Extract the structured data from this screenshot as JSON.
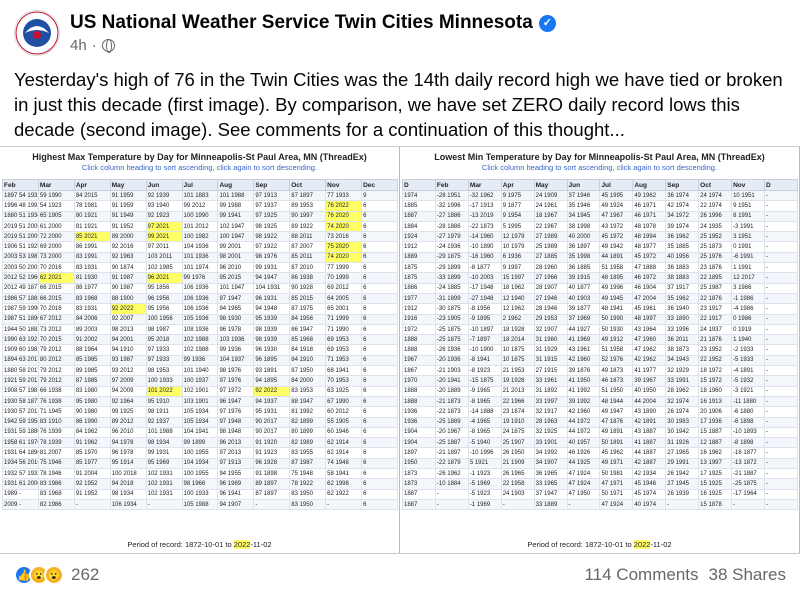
{
  "post": {
    "author": "US National Weather Service Twin Cities Minnesota",
    "time": "4h",
    "text": "Yesterday's high of 76 in the Twin Cities was the 14th daily record high we have tied or broken in just this decade (first image). By comparison, we have set ZERO daily record lows this decade (second image). See comments for a continuation of this thought...",
    "reaction_count": "262",
    "comments": "114 Comments",
    "shares": "38 Shares",
    "reaction_icons": [
      "like-icon",
      "wow-icon",
      "care-icon"
    ]
  },
  "colors": {
    "highlight": "#ffff66",
    "link": "#3a64c8",
    "header_bg": "#e6ecf5"
  },
  "left_table": {
    "title": "Highest Max Temperature by Day for Minneapolis-St Paul Area, MN (ThreadEx)",
    "subtitle": "Click column heading to sort ascending, click again to sort descending.",
    "period": "Period of record: 1872-10-01 to 2022-11-02",
    "headers": [
      "Feb",
      "Mar",
      "Apr",
      "May",
      "Jun",
      "Jul",
      "Aug",
      "Sep",
      "Oct",
      "Nov",
      "Dec"
    ],
    "rows": [
      [
        "1897 54 1931",
        "59 1990",
        "84 2015",
        "91 1959",
        "92 1939",
        "101 1883",
        "101 1988",
        "97 1913",
        "87 1897",
        "77 1933",
        "9"
      ],
      [
        "1996 48 1991",
        "54 1923",
        "78 1981",
        "91 1959",
        "93 1940",
        "99 2012",
        "99 1988",
        "97 1937",
        "89 1953",
        "76 2022",
        "6"
      ],
      [
        "1880 51 1934",
        "65 1905",
        "80 1921",
        "91 1949",
        "92 1923",
        "100 1990",
        "99 1941",
        "97 1925",
        "90 1997",
        "76 2020",
        "6"
      ],
      [
        "2019 51 2005",
        "61 2000",
        "81 1921",
        "91 1952",
        "97 2021",
        "101 2012",
        "102 1947",
        "98 1925",
        "89 1922",
        "74 2020",
        "6"
      ],
      [
        "2019 51 2005",
        "72 2000",
        "85 2021",
        "89 2000",
        "99 2021",
        "100 1982",
        "100 1947",
        "98 1922",
        "88 2011",
        "73 2016",
        "6"
      ],
      [
        "1906 51 1925",
        "69 2000",
        "86 1991",
        "92 2016",
        "97 2011",
        "104 1936",
        "99 2001",
        "97 1922",
        "87 2007",
        "75 2020",
        "6"
      ],
      [
        "2003 53 1987",
        "73 2000",
        "83 1991",
        "92 1963",
        "103 2011",
        "101 1936",
        "98 2001",
        "98 1976",
        "85 2011",
        "74 2020",
        "6"
      ],
      [
        "2003 50 2002",
        "70 2016",
        "83 1931",
        "90 1874",
        "102 1985",
        "101 1974",
        "96 2010",
        "99 1931",
        "87 2010",
        "77 1999",
        "6"
      ],
      [
        "2012 52 1966",
        "62 2021",
        "81 1930",
        "91 1987",
        "96 2021",
        "99 1976",
        "95 2015",
        "94 1947",
        "86 1938",
        "70 1999",
        "6"
      ],
      [
        "2012 49 1877",
        "66 2015",
        "88 1977",
        "90 1987",
        "95 1856",
        "106 1936",
        "101 1947",
        "104 1931",
        "90 1928",
        "69 2012",
        "6"
      ],
      [
        "1986 57 1882",
        "66 2015",
        "83 1968",
        "88 1900",
        "96 1956",
        "106 1936",
        "97 1947",
        "96 1931",
        "85 2015",
        "64 2005",
        "6"
      ],
      [
        "1987 59 1990",
        "70 2016",
        "83 1931",
        "92 2022",
        "95 1956",
        "106 1936",
        "94 1965",
        "94 1948",
        "87 1975",
        "65 2001",
        "6"
      ],
      [
        "1987 51 1890",
        "67 2012",
        "84 2006",
        "92 2007",
        "100 1956",
        "105 1936",
        "98 1930",
        "95 1939",
        "84 1956",
        "71 1999",
        "6"
      ],
      [
        "1944 50 1882",
        "73 2012",
        "89 2003",
        "98 2013",
        "98 1987",
        "108 1936",
        "96 1978",
        "98 1939",
        "86 1947",
        "71 1990",
        "6"
      ],
      [
        "1990 63 1921",
        "70 2015",
        "91 2002",
        "94 2001",
        "95 2018",
        "102 1988",
        "103 1936",
        "98 1939",
        "85 1968",
        "69 1953",
        "6"
      ],
      [
        "1909 60 1981",
        "79 2012",
        "88 1964",
        "94 1910",
        "97 1933",
        "102 1988",
        "99 1936",
        "96 1930",
        "84 1918",
        "69 1953",
        "6"
      ],
      [
        "1894 63 2017",
        "80 2012",
        "85 1985",
        "93 1987",
        "97 1933",
        "99 1936",
        "104 1937",
        "96 1895",
        "84 1910",
        "71 1953",
        "6"
      ],
      [
        "1880 58 2017",
        "79 2012",
        "89 1985",
        "93 2012",
        "98 1953",
        "101 1940",
        "98 1976",
        "93 1891",
        "87 1950",
        "68 1941",
        "6"
      ],
      [
        "1921 59 2017",
        "79 2012",
        "87 1985",
        "97 2009",
        "100 1933",
        "100 1937",
        "97 1976",
        "94 1895",
        "84 2000",
        "70 1953",
        "6"
      ],
      [
        "1908 57 1981",
        "66 1938",
        "83 1980",
        "94 2009",
        "101 2022",
        "102 1901",
        "97 1972",
        "92 2022",
        "83 1953",
        "63 1925",
        "6"
      ],
      [
        "1930 58 1877",
        "76 1938",
        "95 1980",
        "92 1964",
        "95 1910",
        "103 1901",
        "96 1947",
        "94 1937",
        "88 1947",
        "67 1990",
        "6"
      ],
      [
        "1930 57 2017",
        "71 1945",
        "90 1980",
        "99 1925",
        "98 1911",
        "105 1934",
        "97 1976",
        "95 1931",
        "81 1992",
        "60 2012",
        "6"
      ],
      [
        "1942 59 1958",
        "83 1910",
        "86 1990",
        "89 2012",
        "92 1937",
        "105 1934",
        "97 1948",
        "90 2017",
        "82 1899",
        "55 1905",
        "6"
      ],
      [
        "1931 59 1880",
        "76 1939",
        "84 1962",
        "96 2010",
        "101 1988",
        "104 1941",
        "98 1948",
        "90 2017",
        "80 1899",
        "60 1946",
        "6"
      ],
      [
        "1958 61 1976",
        "78 1939",
        "91 1962",
        "94 1978",
        "98 1934",
        "99 1899",
        "96 2013",
        "91 1920",
        "82 1989",
        "62 1914",
        "6"
      ],
      [
        "1931 64 1896",
        "81 2007",
        "85 1970",
        "96 1978",
        "99 1931",
        "100 1955",
        "97 2013",
        "91 1923",
        "83 1955",
        "62 1914",
        "6"
      ],
      [
        "1934 56 2016",
        "75 1946",
        "85 1977",
        "95 1914",
        "95 1969",
        "104 1934",
        "97 1913",
        "96 1928",
        "87 1987",
        "74 1948",
        "6"
      ],
      [
        "1932 57 1932",
        "78 1946",
        "91 2004",
        "100 2018",
        "102 1931",
        "100 1955",
        "94 1955",
        "91 1898",
        "75 1948",
        "58 1941",
        "6"
      ],
      [
        "1931 61 2000",
        "83 1986",
        "92 1952",
        "94 2018",
        "102 1931",
        "98 1966",
        "96 1969",
        "89 1897",
        "78 1922",
        "62 1998",
        "6"
      ],
      [
        "1989 -",
        "83 1968",
        "91 1952",
        "98 1934",
        "102 1931",
        "100 1933",
        "96 1941",
        "87 1897",
        "83 1950",
        "62 1922",
        "6"
      ],
      [
        "2009 -",
        "82 1986",
        "-",
        "106 1934",
        "-",
        "105 1988",
        "94 1907",
        "-",
        "83 1950",
        "-",
        "6"
      ]
    ]
  },
  "right_table": {
    "title": "Lowest Min Temperature by Day for Minneapolis-St Paul Area, MN (ThreadEx)",
    "subtitle": "Click column heading to sort ascending, click again to sort descending.",
    "period": "Period of record: 1872-10-01 to 2022-11-02",
    "headers": [
      "D",
      "Feb",
      "Mar",
      "Apr",
      "May",
      "Jun",
      "Jul",
      "Aug",
      "Sep",
      "Oct",
      "Nov",
      "D"
    ],
    "rows": [
      [
        "1974",
        "-28 1951",
        "-32 1962",
        "9 1975",
        "24 1909",
        "37 1946",
        "45 1995",
        "49 1962",
        "36 1974",
        "24 1974",
        "10 1951",
        "-"
      ],
      [
        "1885",
        "-32 1996",
        "-17 1913",
        "9 1877",
        "24 1961",
        "35 1946",
        "49 1924",
        "46 1971",
        "42 1974",
        "22 1974",
        "9 1951",
        "-"
      ],
      [
        "1887",
        "-27 1886",
        "-13 2019",
        "9 1954",
        "18 1967",
        "34 1945",
        "47 1967",
        "46 1971",
        "34 1972",
        "26 1996",
        "8 1991",
        "-"
      ],
      [
        "1884",
        "-28 1886",
        "-22 1873",
        "5 1995",
        "22 1967",
        "38 1998",
        "43 1972",
        "48 1978",
        "39 1974",
        "24 1935",
        "-3 1991",
        "-"
      ],
      [
        "1924",
        "-27 1979",
        "-14 1960",
        "12 1979",
        "27 1989",
        "40 2000",
        "45 1972",
        "48 1994",
        "36 1962",
        "25 1952",
        "3 1951",
        "-"
      ],
      [
        "1912",
        "-24 1936",
        "-10 1890",
        "10 1979",
        "25 1989",
        "36 1897",
        "49 1942",
        "48 1977",
        "35 1885",
        "25 1873",
        "0 1991",
        "-"
      ],
      [
        "1889",
        "-29 1875",
        "-16 1960",
        "6 1936",
        "27 1885",
        "35 1998",
        "44 1891",
        "45 1972",
        "40 1956",
        "25 1976",
        "-6 1991",
        "-"
      ],
      [
        "1875",
        "-29 1899",
        "-8 1877",
        "9 1997",
        "28 1960",
        "36 1885",
        "51 1958",
        "47 1888",
        "36 1883",
        "23 1876",
        "1 1991",
        "-"
      ],
      [
        "1875",
        "-33 1899",
        "-10 2003",
        "15 1997",
        "27 1966",
        "39 1915",
        "48 1895",
        "46 1972",
        "38 1883",
        "22 1895",
        "12 2017",
        "-"
      ],
      [
        "1886",
        "-24 1885",
        "-17 1948",
        "18 1962",
        "28 1907",
        "40 1877",
        "49 1996",
        "46 1904",
        "37 1917",
        "25 1987",
        "3 1986",
        "-"
      ],
      [
        "1977",
        "-31 1899",
        "-27 1948",
        "12 1940",
        "27 1946",
        "40 1903",
        "49 1945",
        "47 2004",
        "35 1962",
        "22 1876",
        "-1 1986",
        "-"
      ],
      [
        "1912",
        "-30 1875",
        "-8 1956",
        "12 1962",
        "28 1946",
        "39 1877",
        "48 1941",
        "45 1961",
        "36 1940",
        "23 1917",
        "-4 1986",
        "-"
      ],
      [
        "1916",
        "-23 1905",
        "-9 1895",
        "2 1962",
        "29 1953",
        "37 1969",
        "50 1990",
        "48 1997",
        "33 1890",
        "22 1917",
        "0 1986",
        "-"
      ],
      [
        "1972",
        "-25 1875",
        "-10 1897",
        "18 1928",
        "32 1907",
        "44 1927",
        "50 1930",
        "43 1964",
        "33 1996",
        "24 1937",
        "0 1919",
        "-"
      ],
      [
        "1888",
        "-25 1875",
        "-7 1897",
        "18 2014",
        "31 1980",
        "41 1969",
        "49 1912",
        "47 1960",
        "36 2011",
        "21 1876",
        "1 1940",
        "-"
      ],
      [
        "1888",
        "-26 1936",
        "-10 1900",
        "10 1875",
        "31 1929",
        "43 1961",
        "51 1958",
        "47 1962",
        "38 1873",
        "23 1952",
        "-2 1933",
        "-"
      ],
      [
        "1967",
        "-20 1936",
        "-8 1941",
        "10 1875",
        "31 1915",
        "42 1960",
        "52 1976",
        "42 1962",
        "34 1943",
        "22 1952",
        "-5 1933",
        "-"
      ],
      [
        "1867",
        "-21 1903",
        "-8 1923",
        "21 1953",
        "27 1915",
        "39 1876",
        "49 1873",
        "41 1977",
        "32 1929",
        "18 1972",
        "-4 1891",
        "-"
      ],
      [
        "1970",
        "-20 1941",
        "-15 1875",
        "19 1928",
        "33 1961",
        "41 1950",
        "46 1873",
        "39 1967",
        "33 1991",
        "15 1972",
        "-5 1932",
        "-"
      ],
      [
        "1888",
        "-20 1889",
        "-9 1965",
        "21 2013",
        "31 1892",
        "41 1992",
        "51 1950",
        "40 1950",
        "28 1962",
        "18 1960",
        "-3 1921",
        "-"
      ],
      [
        "1888",
        "-21 1873",
        "-8 1965",
        "22 1966",
        "33 1997",
        "39 1992",
        "48 1944",
        "44 2004",
        "32 1974",
        "16 1913",
        "-11 1880",
        "-"
      ],
      [
        "1936",
        "-22 1873",
        "-14 1888",
        "23 1874",
        "32 1917",
        "42 1960",
        "49 1947",
        "43 1890",
        "26 1974",
        "20 1906",
        "-6 1880",
        "-"
      ],
      [
        "1936",
        "-25 1889",
        "-4 1965",
        "19 1910",
        "28 1963",
        "44 1972",
        "47 1876",
        "42 1891",
        "30 1983",
        "17 1936",
        "-6 1898",
        "-"
      ],
      [
        "1904",
        "-20 1967",
        "-8 1965",
        "24 1875",
        "32 1925",
        "44 1972",
        "49 1891",
        "43 1887",
        "30 1942",
        "15 1887",
        "-10 1893",
        "-"
      ],
      [
        "1904",
        "-25 1887",
        "-5 1940",
        "25 1907",
        "33 1901",
        "40 1957",
        "50 1891",
        "41 1887",
        "31 1926",
        "12 1887",
        "-8 1898",
        "-"
      ],
      [
        "1897",
        "-21 1897",
        "-10 1996",
        "26 1950",
        "34 1992",
        "46 1926",
        "45 1962",
        "44 1887",
        "27 1965",
        "16 1962",
        "-16 1877",
        "-"
      ],
      [
        "1950",
        "-22 1879",
        "5 1921",
        "21 1909",
        "34 1907",
        "44 1925",
        "49 1971",
        "42 1887",
        "29 1991",
        "13 1997",
        "-13 1872",
        "-"
      ],
      [
        "1873",
        "-26 1962",
        "-1 1923",
        "26 1965",
        "36 1965",
        "47 1924",
        "50 1981",
        "42 1934",
        "26 1942",
        "17 1925",
        "-21 1887",
        "-"
      ],
      [
        "1873",
        "-10 1884",
        "-5 1969",
        "22 1958",
        "33 1965",
        "47 1924",
        "47 1971",
        "45 1946",
        "27 1945",
        "15 1925",
        "-25 1875",
        "-"
      ],
      [
        "1887",
        "-",
        "-5 1923",
        "24 1903",
        "37 1947",
        "47 1950",
        "50 1971",
        "45 1974",
        "26 1939",
        "16 1925",
        "-17 1964",
        "-"
      ],
      [
        "1887",
        "-",
        "-1 1969",
        "-",
        "33 1889",
        "-",
        "47 1924",
        "40 1974",
        "-",
        "15 1878",
        "-",
        "-"
      ]
    ]
  }
}
